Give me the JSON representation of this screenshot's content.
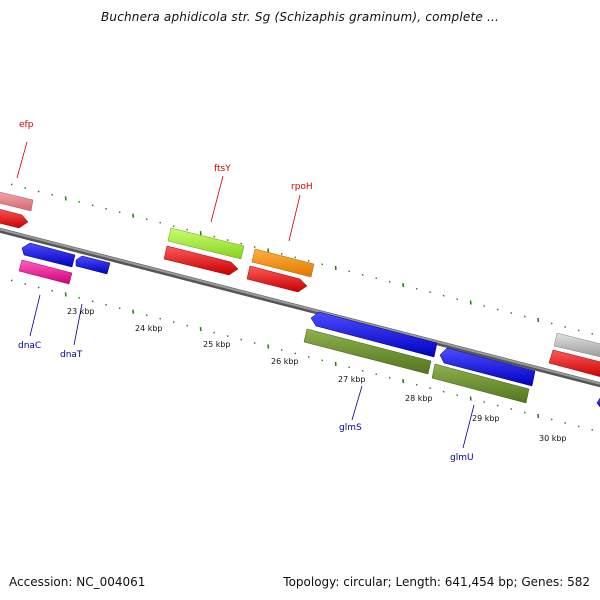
{
  "title": "Buchnera aphidicola str. Sg (Schizaphis graminum), complete ...",
  "footer": {
    "accession": "Accession: NC_004061",
    "summary": "Topology: circular; Length: 641,454 bp; Genes: 582"
  },
  "colors": {
    "backbone": "#8a8a8a",
    "tick": "#2e7d1e",
    "forward_label": "#cc0000",
    "reverse_label": "#000099"
  },
  "tick_labels": [
    "23 kbp",
    "24 kbp",
    "25 kbp",
    "26 kbp",
    "27 kbp",
    "28 kbp",
    "29 kbp",
    "30 kbp"
  ],
  "gene_labels": {
    "efp": "efp",
    "ftsY": "ftsY",
    "rpoH": "rpoH",
    "dnaC": "dnaC",
    "dnaT": "dnaT",
    "glmS": "glmS",
    "glmU": "glmU"
  }
}
